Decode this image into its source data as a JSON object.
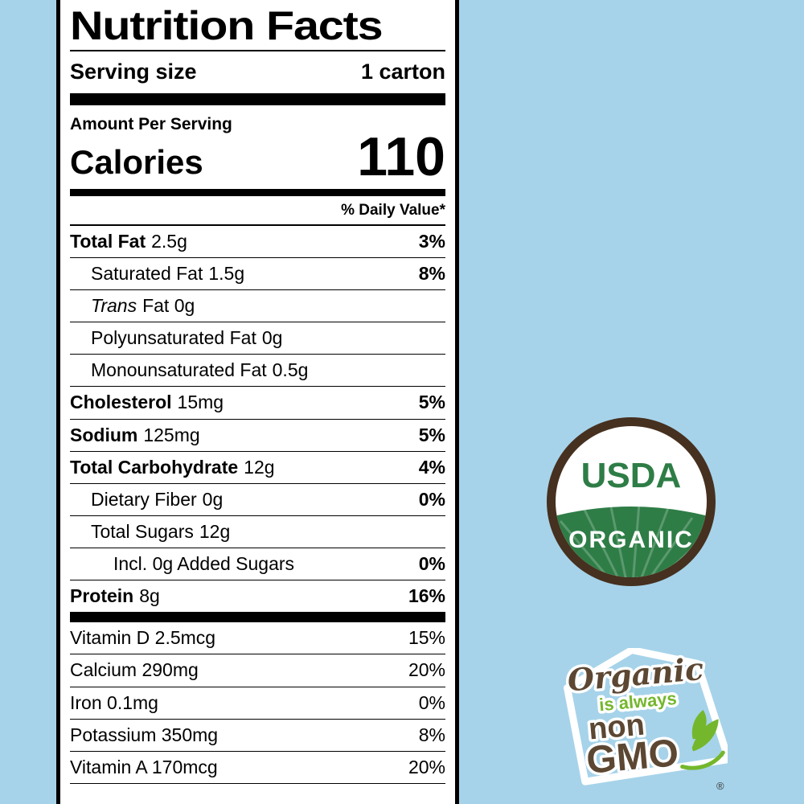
{
  "colors": {
    "page_bg": "#a6d3ea",
    "seal_brown": "#46301f",
    "seal_green": "#2e7d46",
    "badge_brown": "#5c4733",
    "badge_green": "#74b72c",
    "white": "#ffffff"
  },
  "nutrition_label": {
    "title": "Nutrition Facts",
    "serving_size_label": "Serving size",
    "serving_size_value": "1 carton",
    "amount_per_serving_label": "Amount Per Serving",
    "calories_label": "Calories",
    "calories_value": "110",
    "daily_value_header": "% Daily Value*",
    "main_rows": [
      {
        "name": "Total Fat",
        "amount": "2.5g",
        "dv": "3%",
        "bold": true,
        "dv_bold": true,
        "indent": 0
      },
      {
        "name": "Saturated Fat",
        "amount": "1.5g",
        "dv": "8%",
        "dv_bold": true,
        "indent": 1
      },
      {
        "name": "Trans",
        "amount": "Fat 0g",
        "italic": true,
        "indent": 1
      },
      {
        "name": "Polyunsaturated Fat",
        "amount": "0g",
        "indent": 1
      },
      {
        "name": "Monounsaturated Fat",
        "amount": "0.5g",
        "indent": 1
      },
      {
        "name": "Cholesterol",
        "amount": "15mg",
        "dv": "5%",
        "bold": true,
        "dv_bold": true,
        "indent": 0
      },
      {
        "name": "Sodium",
        "amount": "125mg",
        "dv": "5%",
        "bold": true,
        "dv_bold": true,
        "indent": 0
      },
      {
        "name": "Total Carbohydrate",
        "amount": "12g",
        "dv": "4%",
        "bold": true,
        "dv_bold": true,
        "indent": 0
      },
      {
        "name": "Dietary Fiber",
        "amount": "0g",
        "dv": "0%",
        "dv_bold": true,
        "indent": 1
      },
      {
        "name": "Total Sugars",
        "amount": "12g",
        "indent": 1
      },
      {
        "name": "Incl. 0g Added Sugars",
        "dv": "0%",
        "dv_bold": true,
        "indent": 2
      },
      {
        "name": "Protein",
        "amount": "8g",
        "dv": "16%",
        "bold": true,
        "dv_bold": true,
        "indent": 0
      }
    ],
    "vitamin_rows": [
      {
        "name": "Vitamin D 2.5mcg",
        "dv": "15%"
      },
      {
        "name": "Calcium 290mg",
        "dv": "20%"
      },
      {
        "name": "Iron 0.1mg",
        "dv": "0%"
      },
      {
        "name": "Potassium 350mg",
        "dv": "8%"
      },
      {
        "name": "Vitamin A 170mcg",
        "dv": "20%"
      }
    ]
  },
  "usda_seal": {
    "top_text": "USDA",
    "bottom_text": "ORGANIC"
  },
  "non_gmo_badge": {
    "line1": "Organic",
    "line2": "is always",
    "line3": "non",
    "line4": "GMO",
    "registered": "®"
  }
}
